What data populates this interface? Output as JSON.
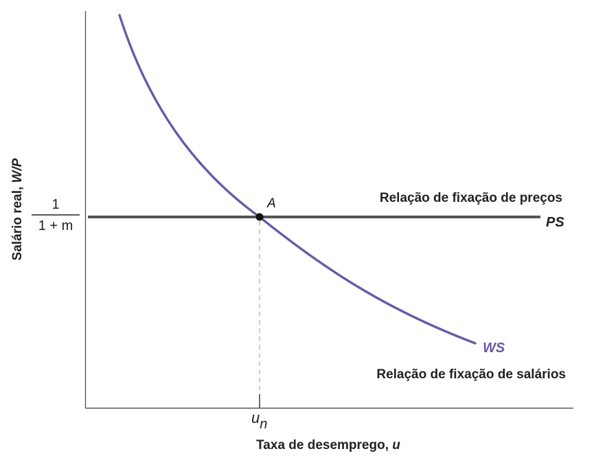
{
  "axes": {
    "y_label_prefix": "Salário real, ",
    "y_label_var": "W/P",
    "x_label_prefix": "Taxa de desemprego, ",
    "x_label_var": "u",
    "y_tick_numerator": "1",
    "y_tick_denominator": "1 + m",
    "x_tick_main": "u",
    "x_tick_sub": "n"
  },
  "curves": {
    "ps_label": "PS",
    "ps_description": "Relação de fixação de preços",
    "ws_label": "WS",
    "ws_description": "Relação de fixação de salários"
  },
  "points": {
    "equilibrium_label": "A"
  },
  "colors": {
    "axis": "#555555",
    "ps_line": "#555555",
    "ws_curve": "#6a58a8",
    "ws_label": "#6a58a8",
    "point": "#111111",
    "dashed_guide": "#aaaaaa",
    "text": "#222222"
  }
}
